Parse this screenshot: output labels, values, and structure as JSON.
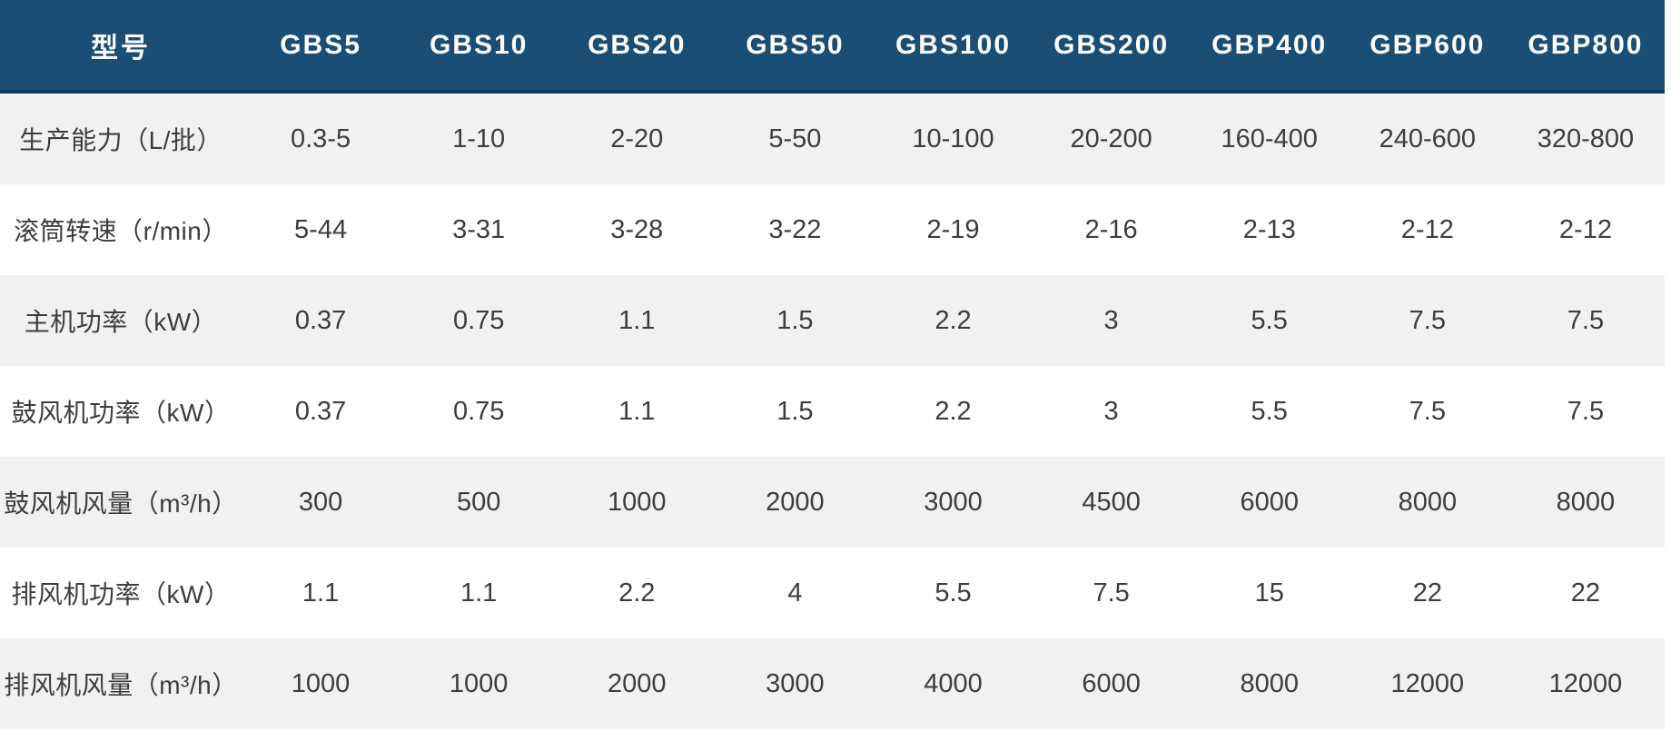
{
  "chart_data": {
    "type": "table",
    "columns": [
      "型号",
      "GBS5",
      "GBS10",
      "GBS20",
      "GBS50",
      "GBS100",
      "GBS200",
      "GBP400",
      "GBP600",
      "GBP800"
    ],
    "rows": [
      [
        "生产能力（L/批）",
        "0.3-5",
        "1-10",
        "2-20",
        "5-50",
        "10-100",
        "20-200",
        "160-400",
        "240-600",
        "320-800"
      ],
      [
        "滚筒转速（r/min）",
        "5-44",
        "3-31",
        "3-28",
        "3-22",
        "2-19",
        "2-16",
        "2-13",
        "2-12",
        "2-12"
      ],
      [
        "主机功率（kW）",
        "0.37",
        "0.75",
        "1.1",
        "1.5",
        "2.2",
        "3",
        "5.5",
        "7.5",
        "7.5"
      ],
      [
        "鼓风机功率（kW）",
        "0.37",
        "0.75",
        "1.1",
        "1.5",
        "2.2",
        "3",
        "5.5",
        "7.5",
        "7.5"
      ],
      [
        "鼓风机风量（m³/h）",
        "300",
        "500",
        "1000",
        "2000",
        "3000",
        "4500",
        "6000",
        "8000",
        "8000"
      ],
      [
        "排风机功率（kW）",
        "1.1",
        "1.1",
        "2.2",
        "4",
        "5.5",
        "7.5",
        "15",
        "22",
        "22"
      ],
      [
        "排风机风量（m³/h）",
        "1000",
        "1000",
        "2000",
        "3000",
        "4000",
        "6000",
        "8000",
        "12000",
        "12000"
      ]
    ],
    "layout": {
      "header_position": "top",
      "row_striping": "odd-rows-gray",
      "first_column_role": "row-labels"
    }
  },
  "colors": {
    "header_bg": "#1a4e74",
    "header_border_bottom": "#123a58",
    "row_stripe": "#f1f1f2",
    "row_plain": "#ffffff",
    "text": "#3d3d3d",
    "header_text": "#ffffff"
  }
}
